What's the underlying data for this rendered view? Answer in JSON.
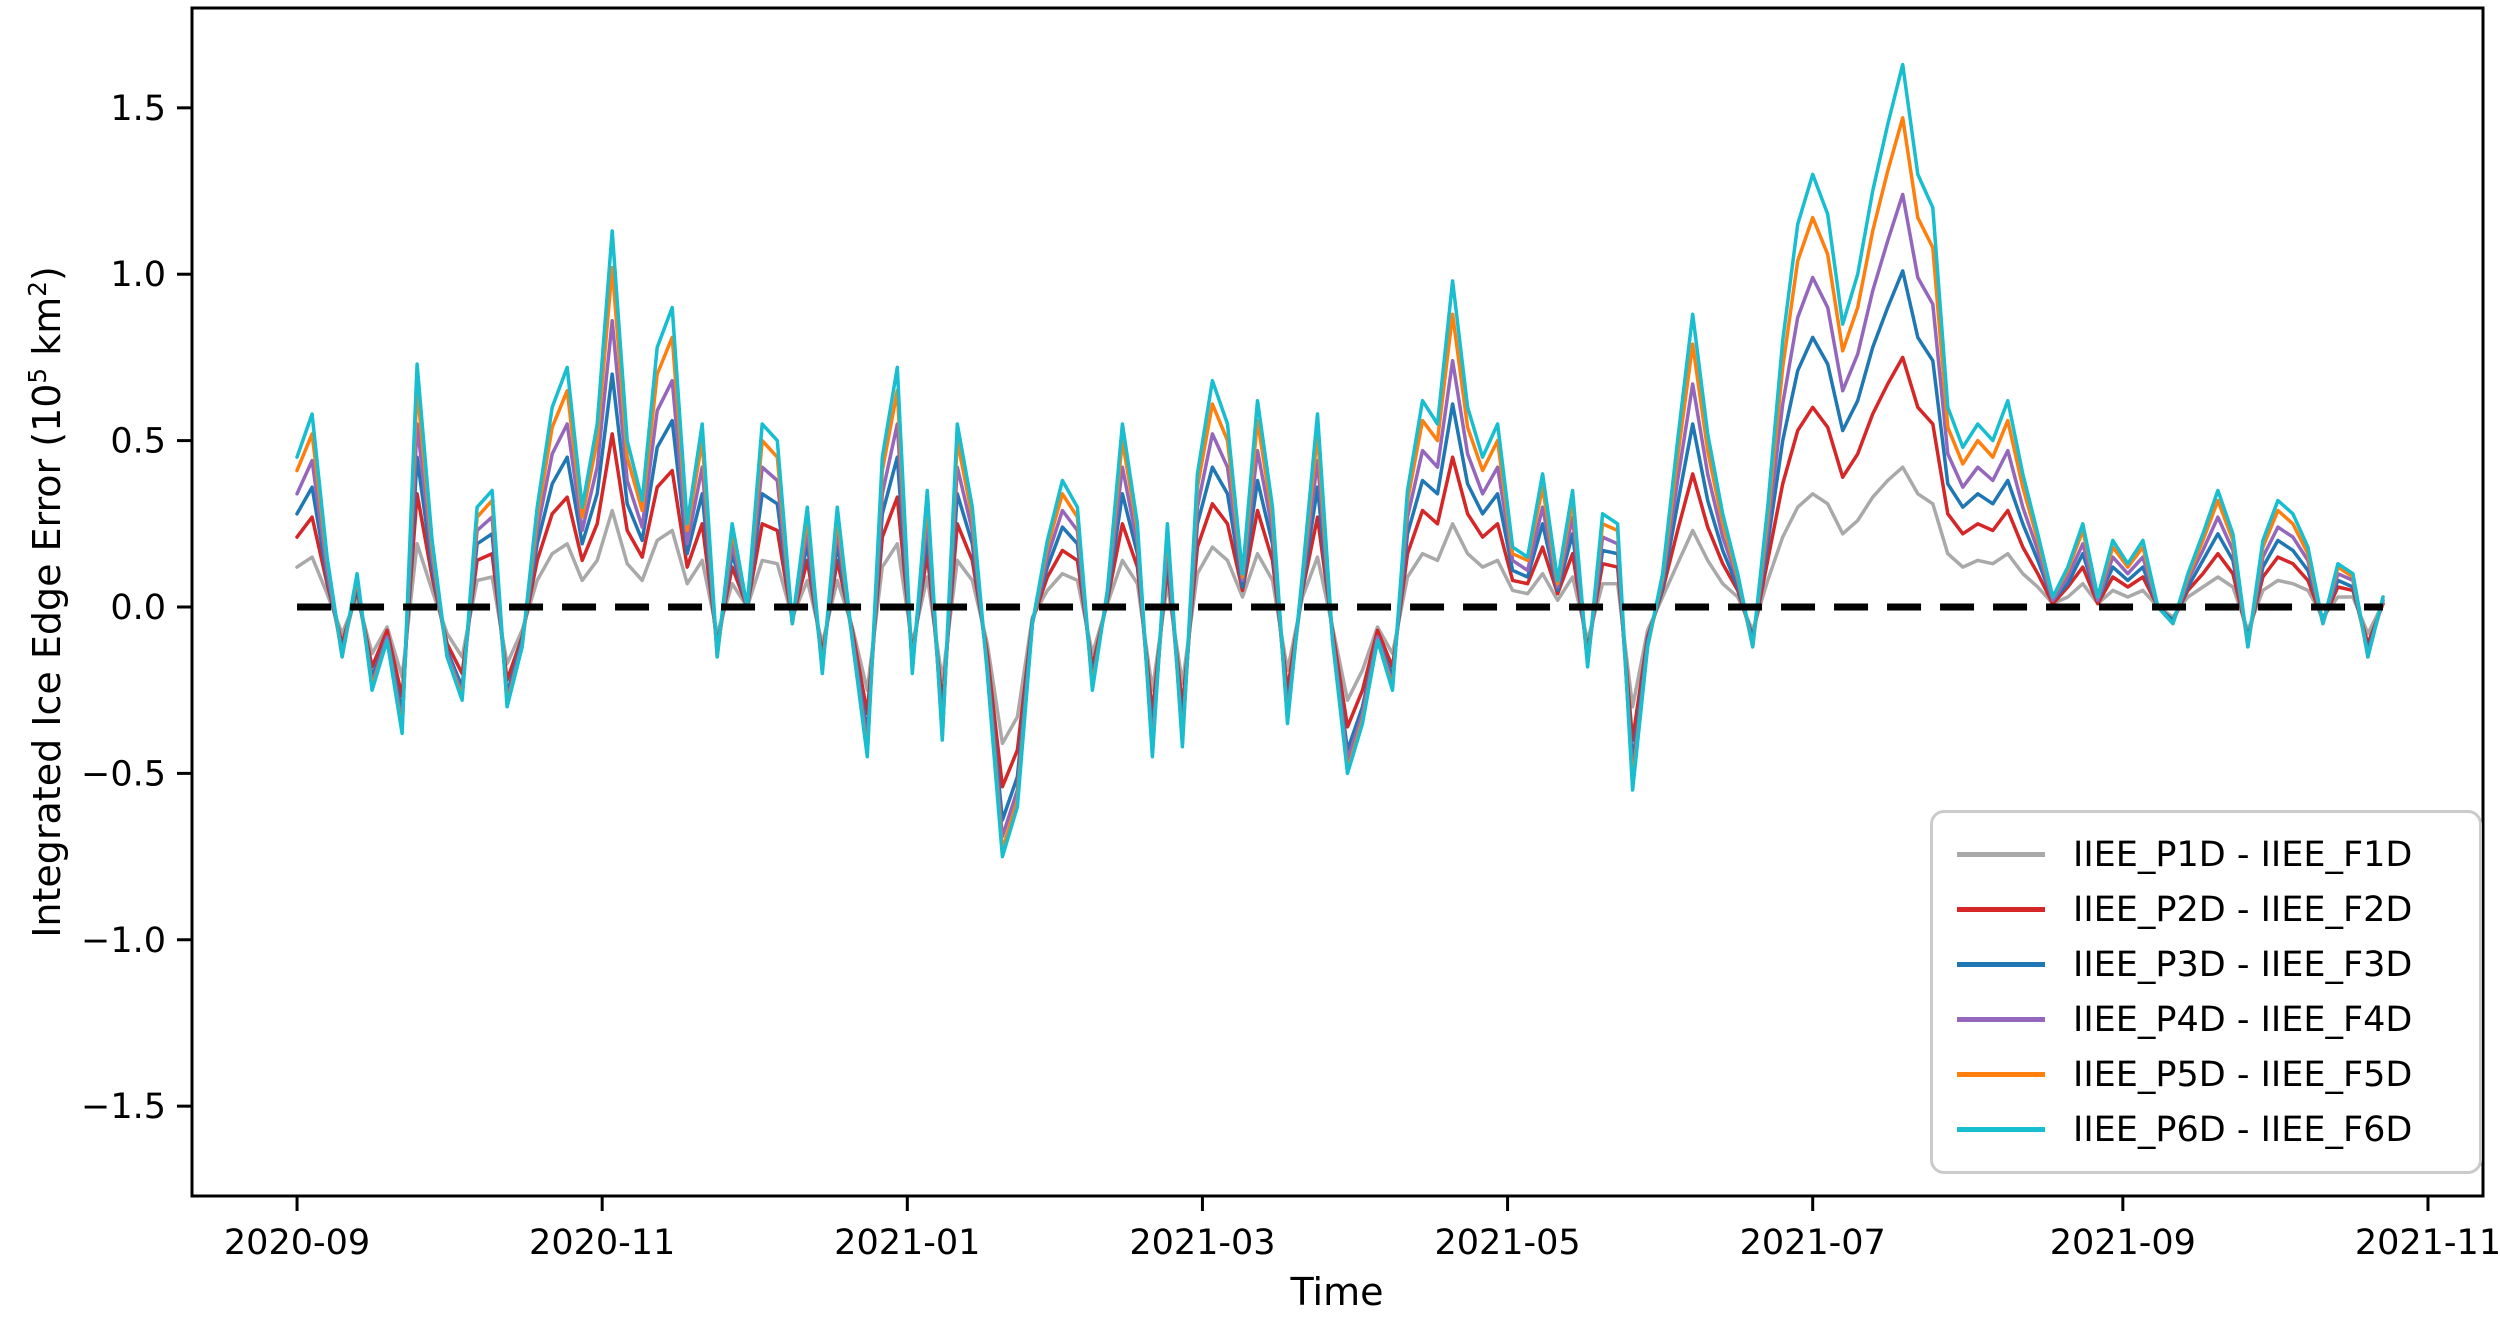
{
  "chart_data": {
    "type": "line",
    "title": "",
    "xlabel": "Time",
    "ylabel_text": "Integrated Ice Edge Error (10^5 km^2)",
    "ylabel_parts": [
      {
        "text": "Integrated Ice Edge Error (10",
        "superscript": false
      },
      {
        "text": "5",
        "superscript": true
      },
      {
        "text": " km",
        "superscript": false
      },
      {
        "text": "2",
        "superscript": true
      },
      {
        "text": ")",
        "superscript": false
      }
    ],
    "x_axis": {
      "unit": "days since 2020-09-01",
      "start_day": 0,
      "step_days": 3,
      "data_end_day": 417,
      "xlim_days": [
        -21,
        437
      ],
      "tick_days": [
        0,
        61,
        122,
        181,
        242,
        303,
        365,
        426
      ],
      "tick_labels": [
        "2020-09",
        "2020-11",
        "2021-01",
        "2021-03",
        "2021-05",
        "2021-07",
        "2021-09",
        "2021-11"
      ]
    },
    "y_axis": {
      "ylim": [
        -1.77,
        1.8
      ],
      "ticks": [
        -1.5,
        -1.0,
        -0.5,
        0.0,
        0.5,
        1.0,
        1.5
      ],
      "tick_labels": [
        "−1.5",
        "−1.0",
        "−0.5",
        "0.0",
        "0.5",
        "1.0",
        "1.5"
      ],
      "grid": false
    },
    "zero_line": {
      "y": 0.0,
      "color": "#000000",
      "style": "dashed",
      "dash_on": 34,
      "dash_off": 19,
      "width": 7,
      "span_days": [
        0,
        417
      ]
    },
    "legend_position": "lower right",
    "series": [
      {
        "name": "IIEE_P1D - IIEE_F1D",
        "color": "#a9a9a9",
        "values": [
          0.12,
          0.15,
          0.04,
          -0.08,
          0.03,
          -0.14,
          -0.06,
          -0.21,
          0.19,
          0.05,
          -0.08,
          -0.15,
          0.08,
          0.09,
          -0.17,
          -0.07,
          0.08,
          0.16,
          0.19,
          0.08,
          0.14,
          0.29,
          0.13,
          0.08,
          0.2,
          0.23,
          0.07,
          0.14,
          -0.08,
          0.07,
          0.0,
          0.14,
          0.13,
          -0.03,
          0.08,
          -0.11,
          0.08,
          -0.06,
          -0.25,
          0.12,
          0.19,
          -0.11,
          0.09,
          -0.22,
          0.14,
          0.08,
          -0.11,
          -0.41,
          -0.33,
          -0.03,
          0.05,
          0.1,
          0.08,
          -0.14,
          0.01,
          0.14,
          0.07,
          -0.25,
          0.07,
          -0.23,
          0.1,
          0.18,
          0.14,
          0.03,
          0.16,
          0.08,
          -0.19,
          0.03,
          0.15,
          -0.06,
          -0.28,
          -0.19,
          -0.06,
          -0.14,
          0.09,
          0.16,
          0.14,
          0.25,
          0.16,
          0.12,
          0.14,
          0.05,
          0.04,
          0.1,
          0.02,
          0.09,
          -0.1,
          0.07,
          0.07,
          -0.3,
          -0.07,
          0.03,
          0.13,
          0.23,
          0.14,
          0.07,
          0.03,
          -0.07,
          0.08,
          0.21,
          0.3,
          0.34,
          0.31,
          0.22,
          0.26,
          0.33,
          0.38,
          0.42,
          0.34,
          0.31,
          0.16,
          0.12,
          0.14,
          0.13,
          0.16,
          0.1,
          0.06,
          0.01,
          0.03,
          0.07,
          0.01,
          0.05,
          0.03,
          0.05,
          0.0,
          -0.03,
          0.03,
          0.06,
          0.09,
          0.06,
          -0.07,
          0.05,
          0.08,
          0.07,
          0.05,
          -0.03,
          0.03,
          0.03,
          -0.08,
          0.01
        ]
      },
      {
        "name": "IIEE_P2D - IIEE_F2D",
        "color": "#d62728",
        "values": [
          0.21,
          0.27,
          0.07,
          -0.11,
          0.05,
          -0.18,
          -0.07,
          -0.27,
          0.34,
          0.09,
          -0.11,
          -0.2,
          0.14,
          0.16,
          -0.22,
          -0.09,
          0.14,
          0.28,
          0.33,
          0.14,
          0.25,
          0.52,
          0.23,
          0.15,
          0.36,
          0.41,
          0.12,
          0.25,
          -0.11,
          0.12,
          0.0,
          0.25,
          0.23,
          -0.04,
          0.14,
          -0.14,
          0.14,
          -0.07,
          -0.32,
          0.21,
          0.33,
          -0.14,
          0.16,
          -0.29,
          0.25,
          0.14,
          -0.14,
          -0.54,
          -0.43,
          -0.04,
          0.09,
          0.17,
          0.14,
          -0.18,
          0.02,
          0.25,
          0.12,
          -0.32,
          0.12,
          -0.3,
          0.18,
          0.31,
          0.25,
          0.05,
          0.29,
          0.14,
          -0.25,
          0.05,
          0.27,
          -0.07,
          -0.36,
          -0.25,
          -0.07,
          -0.18,
          0.16,
          0.29,
          0.25,
          0.45,
          0.28,
          0.21,
          0.25,
          0.08,
          0.07,
          0.18,
          0.04,
          0.16,
          -0.13,
          0.13,
          0.12,
          -0.4,
          -0.09,
          0.05,
          0.23,
          0.4,
          0.24,
          0.13,
          0.05,
          -0.09,
          0.14,
          0.37,
          0.53,
          0.6,
          0.54,
          0.39,
          0.46,
          0.58,
          0.67,
          0.75,
          0.6,
          0.55,
          0.28,
          0.22,
          0.25,
          0.23,
          0.29,
          0.18,
          0.1,
          0.01,
          0.06,
          0.12,
          0.01,
          0.09,
          0.06,
          0.09,
          0.0,
          -0.04,
          0.05,
          0.1,
          0.16,
          0.1,
          -0.09,
          0.09,
          0.15,
          0.13,
          0.08,
          -0.04,
          0.06,
          0.05,
          -0.11,
          0.01
        ]
      },
      {
        "name": "IIEE_P3D - IIEE_F3D",
        "color": "#1f77b4",
        "values": [
          0.28,
          0.36,
          0.09,
          -0.13,
          0.06,
          -0.21,
          -0.09,
          -0.32,
          0.45,
          0.12,
          -0.13,
          -0.24,
          0.19,
          0.22,
          -0.26,
          -0.1,
          0.19,
          0.37,
          0.45,
          0.19,
          0.34,
          0.7,
          0.31,
          0.2,
          0.48,
          0.56,
          0.16,
          0.34,
          -0.13,
          0.16,
          0.0,
          0.34,
          0.31,
          -0.04,
          0.19,
          -0.17,
          0.19,
          -0.09,
          -0.38,
          0.28,
          0.45,
          -0.17,
          0.22,
          -0.34,
          0.34,
          0.19,
          -0.17,
          -0.64,
          -0.51,
          -0.04,
          0.12,
          0.24,
          0.19,
          -0.21,
          0.03,
          0.34,
          0.16,
          -0.38,
          0.16,
          -0.36,
          0.25,
          0.42,
          0.34,
          0.06,
          0.38,
          0.19,
          -0.3,
          0.06,
          0.36,
          -0.09,
          -0.43,
          -0.3,
          -0.09,
          -0.21,
          0.22,
          0.38,
          0.34,
          0.61,
          0.37,
          0.28,
          0.34,
          0.11,
          0.09,
          0.25,
          0.05,
          0.22,
          -0.15,
          0.17,
          0.16,
          -0.47,
          -0.1,
          0.06,
          0.31,
          0.55,
          0.32,
          0.17,
          0.06,
          -0.1,
          0.19,
          0.5,
          0.71,
          0.81,
          0.73,
          0.53,
          0.62,
          0.78,
          0.9,
          1.01,
          0.81,
          0.74,
          0.37,
          0.3,
          0.34,
          0.31,
          0.38,
          0.25,
          0.14,
          0.02,
          0.07,
          0.16,
          0.02,
          0.12,
          0.08,
          0.12,
          0.0,
          -0.04,
          0.06,
          0.14,
          0.22,
          0.14,
          -0.1,
          0.12,
          0.2,
          0.17,
          0.11,
          -0.04,
          0.08,
          0.06,
          -0.13,
          0.02
        ]
      },
      {
        "name": "IIEE_P4D - IIEE_F4D",
        "color": "#9467bd",
        "values": [
          0.34,
          0.44,
          0.11,
          -0.14,
          0.08,
          -0.23,
          -0.09,
          -0.35,
          0.55,
          0.15,
          -0.14,
          -0.26,
          0.23,
          0.27,
          -0.28,
          -0.11,
          0.23,
          0.46,
          0.55,
          0.23,
          0.42,
          0.86,
          0.38,
          0.24,
          0.59,
          0.68,
          0.19,
          0.42,
          -0.14,
          0.19,
          0.0,
          0.42,
          0.38,
          -0.05,
          0.23,
          -0.18,
          0.23,
          -0.09,
          -0.41,
          0.34,
          0.55,
          -0.18,
          0.27,
          -0.37,
          0.42,
          0.23,
          -0.18,
          -0.69,
          -0.55,
          -0.05,
          0.15,
          0.29,
          0.23,
          -0.23,
          0.04,
          0.42,
          0.19,
          -0.41,
          0.19,
          -0.39,
          0.3,
          0.52,
          0.42,
          0.08,
          0.47,
          0.23,
          -0.32,
          0.08,
          0.44,
          -0.09,
          -0.46,
          -0.32,
          -0.09,
          -0.23,
          0.27,
          0.47,
          0.42,
          0.74,
          0.46,
          0.34,
          0.42,
          0.14,
          0.11,
          0.3,
          0.06,
          0.27,
          -0.17,
          0.21,
          0.19,
          -0.51,
          -0.11,
          0.08,
          0.38,
          0.67,
          0.4,
          0.21,
          0.08,
          -0.11,
          0.23,
          0.61,
          0.87,
          0.99,
          0.9,
          0.65,
          0.76,
          0.95,
          1.1,
          1.24,
          0.99,
          0.91,
          0.46,
          0.36,
          0.42,
          0.38,
          0.47,
          0.3,
          0.17,
          0.02,
          0.09,
          0.19,
          0.02,
          0.15,
          0.1,
          0.15,
          0.0,
          -0.05,
          0.08,
          0.17,
          0.27,
          0.17,
          -0.11,
          0.15,
          0.24,
          0.21,
          0.14,
          -0.05,
          0.1,
          0.08,
          -0.14,
          0.02
        ]
      },
      {
        "name": "IIEE_P5D - IIEE_F5D",
        "color": "#ff7f0e",
        "values": [
          0.41,
          0.52,
          0.14,
          -0.15,
          0.09,
          -0.24,
          -0.1,
          -0.37,
          0.66,
          0.18,
          -0.15,
          -0.27,
          0.27,
          0.32,
          -0.29,
          -0.12,
          0.27,
          0.54,
          0.65,
          0.27,
          0.5,
          1.02,
          0.45,
          0.29,
          0.7,
          0.81,
          0.23,
          0.5,
          -0.15,
          0.23,
          0.0,
          0.5,
          0.45,
          -0.05,
          0.27,
          -0.19,
          0.27,
          -0.1,
          -0.44,
          0.41,
          0.65,
          -0.19,
          0.32,
          -0.39,
          0.5,
          0.27,
          -0.19,
          -0.73,
          -0.58,
          -0.05,
          0.18,
          0.34,
          0.27,
          -0.24,
          0.05,
          0.5,
          0.23,
          -0.44,
          0.23,
          -0.41,
          0.36,
          0.61,
          0.5,
          0.09,
          0.56,
          0.27,
          -0.34,
          0.09,
          0.52,
          -0.1,
          -0.49,
          -0.34,
          -0.1,
          -0.24,
          0.32,
          0.56,
          0.5,
          0.88,
          0.54,
          0.41,
          0.5,
          0.16,
          0.14,
          0.36,
          0.07,
          0.32,
          -0.17,
          0.25,
          0.23,
          -0.53,
          -0.12,
          0.09,
          0.45,
          0.79,
          0.47,
          0.25,
          0.09,
          -0.12,
          0.27,
          0.72,
          1.04,
          1.17,
          1.06,
          0.77,
          0.9,
          1.13,
          1.31,
          1.47,
          1.17,
          1.08,
          0.54,
          0.43,
          0.5,
          0.45,
          0.56,
          0.36,
          0.2,
          0.03,
          0.11,
          0.23,
          0.03,
          0.18,
          0.12,
          0.18,
          0.0,
          -0.05,
          0.09,
          0.2,
          0.32,
          0.2,
          -0.12,
          0.18,
          0.29,
          0.25,
          0.16,
          -0.05,
          0.12,
          0.09,
          -0.15,
          0.03
        ]
      },
      {
        "name": "IIEE_P6D - IIEE_F6D",
        "color": "#17becf",
        "values": [
          0.45,
          0.58,
          0.15,
          -0.15,
          0.1,
          -0.25,
          -0.1,
          -0.38,
          0.73,
          0.2,
          -0.15,
          -0.28,
          0.3,
          0.35,
          -0.3,
          -0.12,
          0.3,
          0.6,
          0.72,
          0.3,
          0.55,
          1.13,
          0.5,
          0.32,
          0.78,
          0.9,
          0.25,
          0.55,
          -0.15,
          0.25,
          0.0,
          0.55,
          0.5,
          -0.05,
          0.3,
          -0.2,
          0.3,
          -0.1,
          -0.45,
          0.45,
          0.72,
          -0.2,
          0.35,
          -0.4,
          0.55,
          0.3,
          -0.2,
          -0.75,
          -0.6,
          -0.05,
          0.2,
          0.38,
          0.3,
          -0.25,
          0.05,
          0.55,
          0.25,
          -0.45,
          0.25,
          -0.42,
          0.4,
          0.68,
          0.55,
          0.1,
          0.62,
          0.3,
          -0.35,
          0.1,
          0.58,
          -0.1,
          -0.5,
          -0.35,
          -0.1,
          -0.25,
          0.35,
          0.62,
          0.55,
          0.98,
          0.6,
          0.45,
          0.55,
          0.18,
          0.15,
          0.4,
          0.08,
          0.35,
          -0.18,
          0.28,
          0.25,
          -0.55,
          -0.12,
          0.1,
          0.5,
          0.88,
          0.52,
          0.28,
          0.1,
          -0.12,
          0.3,
          0.8,
          1.15,
          1.3,
          1.18,
          0.85,
          1.0,
          1.25,
          1.45,
          1.63,
          1.3,
          1.2,
          0.6,
          0.48,
          0.55,
          0.5,
          0.62,
          0.4,
          0.22,
          0.03,
          0.12,
          0.25,
          0.03,
          0.2,
          0.13,
          0.2,
          0.0,
          -0.05,
          0.1,
          0.22,
          0.35,
          0.22,
          -0.12,
          0.2,
          0.32,
          0.28,
          0.18,
          -0.05,
          0.13,
          0.1,
          -0.15,
          0.03
        ]
      }
    ]
  },
  "style": {
    "background": "#ffffff",
    "spine_color": "#000000",
    "series_line_width": 3.5,
    "legend_border_color": "#cbcbcb"
  }
}
